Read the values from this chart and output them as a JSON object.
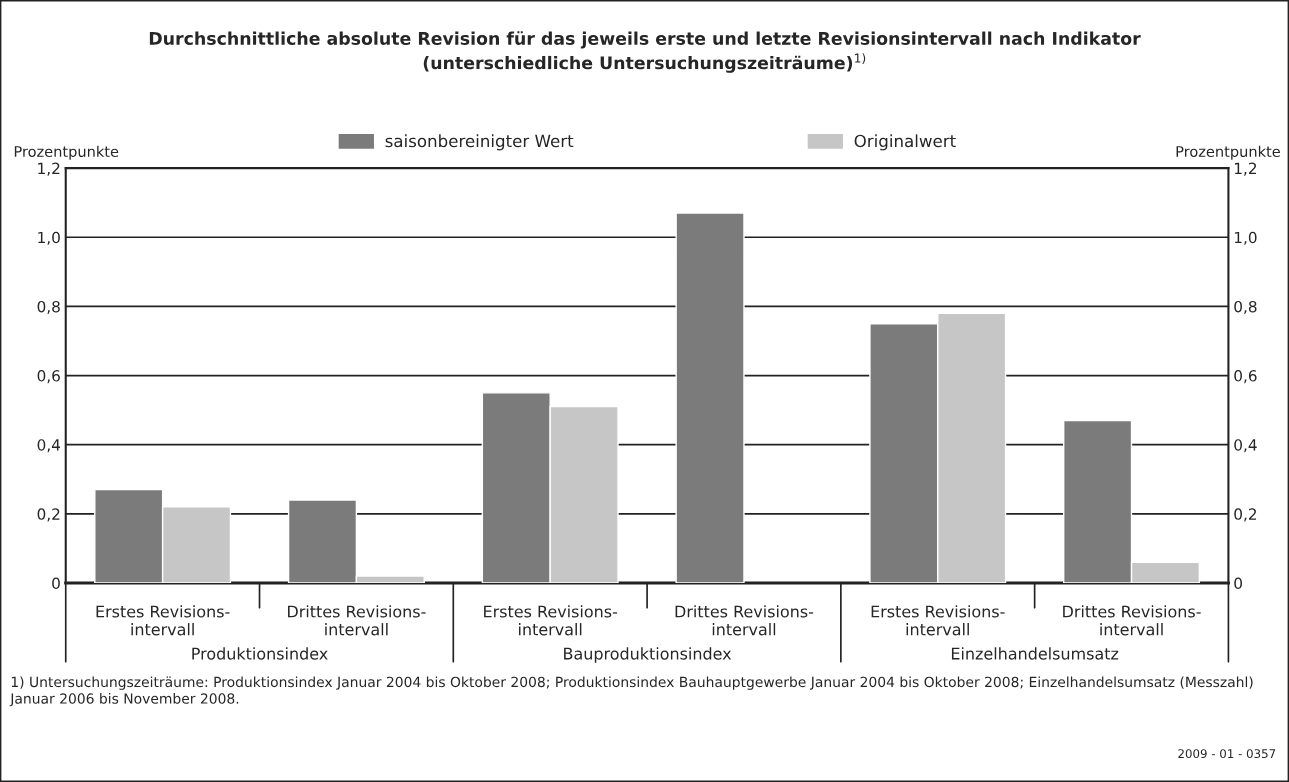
{
  "chart_data": {
    "type": "bar",
    "title": "Durchschnittliche absolute Revision für das jeweils erste und letzte Revisionsintervall nach Indikator\n(unterschiedliche Untersuchungszeiträume)$^{1)}$",
    "categories": [
      "Erstes Revisions-\nintervall",
      "Drittes Revisions-\nintervall",
      "Erstes Revisions-\nintervall",
      "Drittes Revisions-\nintervall",
      "Erstes Revisions-\nintervall",
      "Drittes Revisions-\nintervall"
    ],
    "series": [
      {
        "name": "saisonbereinigter Wert",
        "color": "#7b7b7b",
        "values": [
          0.27,
          0.24,
          0.55,
          1.07,
          0.75,
          0.47
        ]
      },
      {
        "name": "Originalwert",
        "color": "#c6c6c6",
        "values": [
          0.22,
          0.02,
          0.51,
          null,
          0.78,
          0.06
        ]
      }
    ],
    "ylabel": "Prozentpunkte",
    "y2label": "Prozentpunkte",
    "ylim": [
      0,
      1.2
    ],
    "yticks": [
      0,
      {
        "value": 0.2,
        "label": "0,2"
      },
      {
        "value": 0.4,
        "label": "0,4"
      },
      {
        "value": 0.6,
        "label": "0,6"
      },
      {
        "value": 0.8,
        "label": "0,8"
      },
      {
        "value": 1.0,
        "label": "1,0"
      },
      {
        "value": 1.2,
        "label": "1,2"
      }
    ],
    "y2lim": [
      0,
      1.2
    ],
    "y2ticks": [
      0,
      {
        "value": 0.2,
        "label": "0,2"
      },
      {
        "value": 0.4,
        "label": "0,4"
      },
      {
        "value": 0.6,
        "label": "0,6"
      },
      {
        "value": 0.8,
        "label": "0,8"
      },
      {
        "value": 1.0,
        "label": "1,0"
      },
      {
        "value": 1.2,
        "label": "1,2"
      }
    ],
    "grid": "y",
    "legend": "top",
    "annotations": [
      "Produktionsindex",
      "Bauproduktionsindex",
      "Einzelhandelsumsatz",
      "1) Untersuchungszeiträume: Produktionsindex Januar 2004 bis Oktober 2008; Produktionsindex Bauhauptgewerbe Januar 2004 bis Oktober 2008; Einzelhandelsumsatz (Messzahl) Januar 2006 bis November 2008.",
      "2009 - 01 - 0357"
    ]
  }
}
